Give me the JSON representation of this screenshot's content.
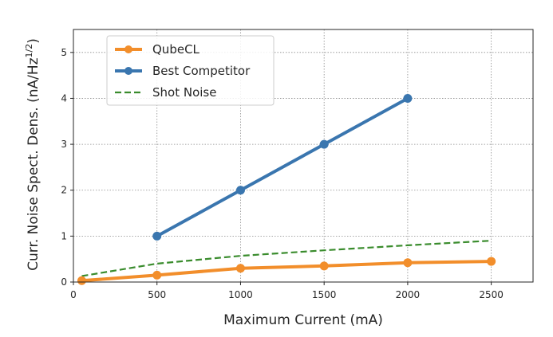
{
  "chart_data": {
    "type": "line",
    "title": "",
    "xlabel": "Maximum Current (mA)",
    "ylabel": "Curr. Noise Spect. Dens. (nA/Hz",
    "ylabel_superscript": "1/2",
    "ylabel_suffix": ")",
    "xlim": [
      0,
      2750
    ],
    "ylim": [
      0,
      5.5
    ],
    "xticks": [
      0,
      500,
      1000,
      1500,
      2000,
      2500
    ],
    "yticks": [
      0,
      1,
      2,
      3,
      4,
      5
    ],
    "grid": true,
    "legend_position": "upper-left",
    "series": [
      {
        "name": "QubeCL",
        "color": "#f28e2b",
        "style": "solid",
        "marker": "circle",
        "x": [
          50,
          500,
          1000,
          1500,
          2000,
          2500
        ],
        "y": [
          0.03,
          0.15,
          0.3,
          0.35,
          0.42,
          0.45
        ]
      },
      {
        "name": "Best Competitor",
        "color": "#3a76af",
        "style": "solid",
        "marker": "circle",
        "x": [
          500,
          1000,
          1500,
          2000
        ],
        "y": [
          1,
          2,
          3,
          4
        ]
      },
      {
        "name": "Shot Noise",
        "color": "#3a8c2d",
        "style": "dashed",
        "marker": "none",
        "x": [
          50,
          500,
          1000,
          1500,
          2000,
          2500
        ],
        "y": [
          0.13,
          0.4,
          0.57,
          0.69,
          0.8,
          0.9
        ]
      }
    ]
  }
}
